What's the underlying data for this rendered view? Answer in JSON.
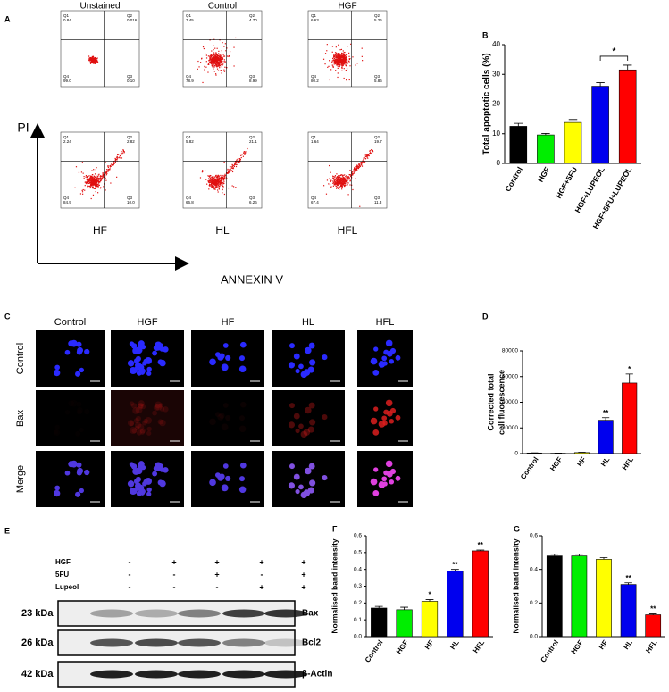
{
  "panel_labels": [
    "A",
    "B",
    "C",
    "D",
    "E",
    "F",
    "G"
  ],
  "flow": {
    "y_axis": "PI",
    "x_axis": "ANNEXIN V",
    "quadrant_names": [
      "Q1",
      "Q2",
      "Q4",
      "Q3"
    ],
    "plots": [
      {
        "title": "Unstained",
        "quadrants": [
          "0.84",
          "0.016",
          "99.0",
          "0.10"
        ]
      },
      {
        "title": "Control",
        "quadrants": [
          "7.45",
          "4.70",
          "78.9",
          "8.99"
        ]
      },
      {
        "title": "HGF",
        "quadrants": [
          "6.63",
          "5.26",
          "80.2",
          "5.86"
        ]
      },
      {
        "title": "HF",
        "quadrants": [
          "2.24",
          "2.82",
          "84.9",
          "10.0"
        ]
      },
      {
        "title": "HL",
        "quadrants": [
          "5.82",
          "21.1",
          "66.8",
          "6.26"
        ]
      },
      {
        "title": "HFL",
        "quadrants": [
          "1.64",
          "19.7",
          "67.4",
          "11.3"
        ]
      }
    ]
  },
  "microscopy": {
    "columns": [
      "Control",
      "HGF",
      "HF",
      "HL",
      "HFL"
    ],
    "rows": [
      "Control",
      "Bax",
      "Merge"
    ]
  },
  "western": {
    "treatments": [
      {
        "name": "HGF",
        "lanes": [
          "-",
          "+",
          "+",
          "+",
          "+"
        ]
      },
      {
        "name": "5FU",
        "lanes": [
          "-",
          "-",
          "+",
          "-",
          "+"
        ]
      },
      {
        "name": "Lupeol",
        "lanes": [
          "-",
          "-",
          "-",
          "+",
          "+"
        ]
      }
    ],
    "bands": [
      {
        "size": "23 kDa",
        "protein": "Bax"
      },
      {
        "size": "26 kDa",
        "protein": "Bcl2"
      },
      {
        "size": "42 kDa",
        "protein": "β-Actin"
      }
    ]
  },
  "chart_data": [
    {
      "type": "bar",
      "y_label": "Total apoptotic cells (%)",
      "categories": [
        "Control",
        "HGF",
        "HGF+5FU",
        "HGF+LUPEOL",
        "HGF+5FU+LUPEOL"
      ],
      "colors": [
        "#000000",
        "#00ee00",
        "#ffff00",
        "#0000ee",
        "#ff0000"
      ],
      "values": [
        12.5,
        9.6,
        13.8,
        26,
        31.5
      ],
      "errors": [
        1.0,
        0.5,
        1.0,
        1.2,
        1.6
      ],
      "ylim": [
        0,
        40
      ],
      "yticks": [
        0,
        10,
        20,
        30,
        40
      ],
      "bracket_label": "*"
    },
    {
      "type": "bar",
      "y_label": [
        "Corrected total",
        "cell fluorescence"
      ],
      "categories": [
        "Control",
        "HGF",
        "HF",
        "HL",
        "HFL"
      ],
      "colors": [
        "#000000",
        "#00ee00",
        "#ffff00",
        "#0000ee",
        "#ff0000"
      ],
      "values": [
        500,
        300,
        800,
        26000,
        55000
      ],
      "errors": [
        100,
        100,
        200,
        2000,
        7000
      ],
      "significance": [
        null,
        null,
        null,
        "**",
        "*"
      ],
      "ylim": [
        0,
        80000
      ],
      "yticks": [
        0,
        20000,
        40000,
        60000,
        80000
      ]
    },
    {
      "type": "bar",
      "y_label": "Normalised band intensity",
      "categories": [
        "Control",
        "HGF",
        "HF",
        "HL",
        "HFL"
      ],
      "colors": [
        "#000000",
        "#00ee00",
        "#ffff00",
        "#0000ee",
        "#ff0000"
      ],
      "values": [
        0.17,
        0.16,
        0.21,
        0.39,
        0.51
      ],
      "errors": [
        0.01,
        0.015,
        0.01,
        0.01,
        0.005
      ],
      "significance": [
        null,
        null,
        "*",
        "**",
        "**"
      ],
      "ylim": [
        0,
        0.6
      ],
      "yticks": [
        {
          "value": 0,
          "label": "0.0"
        },
        0.1,
        0.2,
        0.3,
        0.4,
        0.5,
        0.6
      ]
    },
    {
      "type": "bar",
      "y_label": "Normalised band intensity",
      "categories": [
        "Control",
        "HGF",
        "HF",
        "HL",
        "HFL"
      ],
      "colors": [
        "#000000",
        "#00ee00",
        "#ffff00",
        "#0000ee",
        "#ff0000"
      ],
      "values": [
        0.48,
        0.48,
        0.46,
        0.31,
        0.13
      ],
      "errors": [
        0.01,
        0.01,
        0.01,
        0.01,
        0.005
      ],
      "significance": [
        null,
        null,
        null,
        "**",
        "**"
      ],
      "ylim": [
        0,
        0.6
      ],
      "yticks": [
        {
          "value": 0,
          "label": "0.0"
        },
        0.2,
        0.4,
        0.6
      ]
    }
  ]
}
